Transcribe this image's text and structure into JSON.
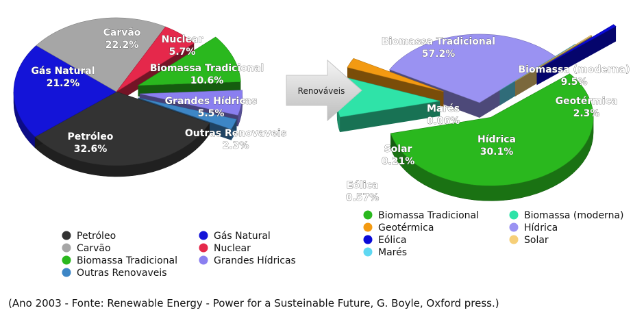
{
  "colors": {
    "Petróleo": "#333333",
    "Carvão": "#a6a6a6",
    "Gás Natural": "#1414d8",
    "Nuclear": "#e5284b",
    "Biomassa Tradicional": "#2ab81e",
    "Grandes Hídricas": "#8a7ff0",
    "Outras Renovaveis": "#3d86c6",
    "Biomassa (moderna)": "#2fe3a8",
    "Geotérmica": "#f39a12",
    "Eólica": "#0a0ad8",
    "Marés": "#5fd8f2",
    "Hídrica": "#9a92f2",
    "Solar": "#f6cf78"
  },
  "arrow": {
    "label": "Renováveis"
  },
  "chart_data": [
    {
      "type": "pie",
      "title": "",
      "slices": [
        {
          "label": "Petróleo",
          "value": 32.6,
          "text": "32.6%"
        },
        {
          "label": "Gás Natural",
          "value": 21.2,
          "text": "21.2%"
        },
        {
          "label": "Carvão",
          "value": 22.2,
          "text": "22.2%"
        },
        {
          "label": "Nuclear",
          "value": 5.7,
          "text": "5.7%"
        },
        {
          "label": "Biomassa Tradicional",
          "value": 10.6,
          "text": "10.6%"
        },
        {
          "label": "Grandes Hídricas",
          "value": 5.5,
          "text": "5.5%"
        },
        {
          "label": "Outras Renovaveis",
          "value": 2.3,
          "text": "2.3%"
        }
      ],
      "legend": {
        "placement": "bottom",
        "items": [
          "Petróleo",
          "Gás Natural",
          "Carvão",
          "Nuclear",
          "Biomassa Tradicional",
          "Grandes Hídricas",
          "Outras Renovaveis"
        ]
      }
    },
    {
      "type": "pie",
      "title": "",
      "slices": [
        {
          "label": "Biomassa Tradicional",
          "value": 57.2,
          "text": "57.2%"
        },
        {
          "label": "Biomassa (moderna)",
          "value": 9.5,
          "text": "9.5%"
        },
        {
          "label": "Geotérmica",
          "value": 2.3,
          "text": "2.3%"
        },
        {
          "label": "Hídrica",
          "value": 30.1,
          "text": "30.1%"
        },
        {
          "label": "Marés",
          "value": 0.06,
          "text": "0.06%"
        },
        {
          "label": "Solar",
          "value": 0.21,
          "text": "0.21%"
        },
        {
          "label": "Eólica",
          "value": 0.57,
          "text": "0.57%"
        }
      ],
      "legend": {
        "placement": "bottom",
        "items": [
          "Biomassa Tradicional",
          "Biomassa (moderna)",
          "Geotérmica",
          "Hídrica",
          "Eólica",
          "Solar",
          "Marés"
        ]
      }
    }
  ],
  "caption": "(Ano 2003 - Fonte: Renewable Energy - Power for a Susteinable Future, G. Boyle, Oxford press.)"
}
